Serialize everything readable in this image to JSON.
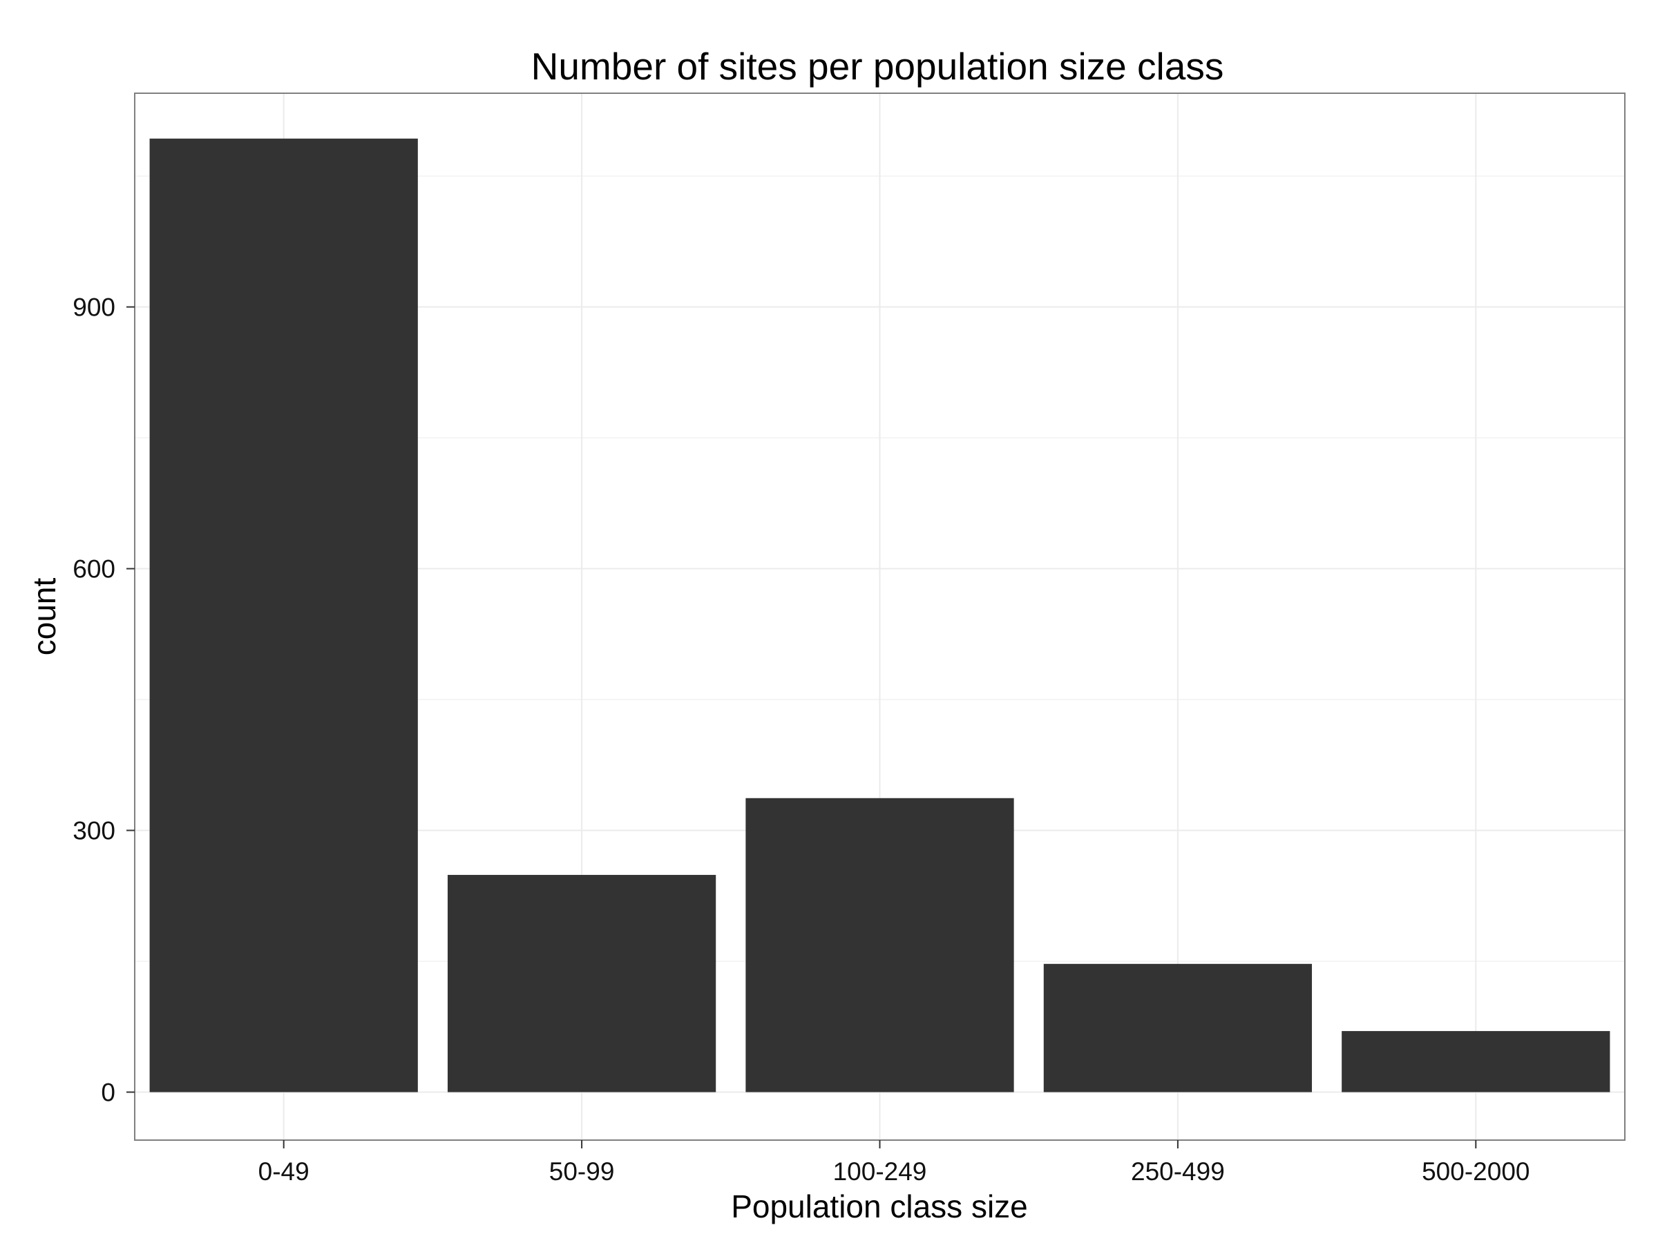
{
  "chart_data": {
    "type": "bar",
    "title": "Number of sites per population size class",
    "xlabel": "Population class size",
    "ylabel": "count",
    "categories": [
      "0-49",
      "50-99",
      "100-249",
      "250-499",
      "500-2000"
    ],
    "values": [
      1093,
      249,
      337,
      147,
      70
    ],
    "ylim": [
      -55,
      1145
    ],
    "yticks": [
      0,
      300,
      600,
      900
    ],
    "grid": true,
    "bar_color": "#333333",
    "panel_border_color": "#7f7f7f",
    "grid_color": "#ebebeb"
  }
}
